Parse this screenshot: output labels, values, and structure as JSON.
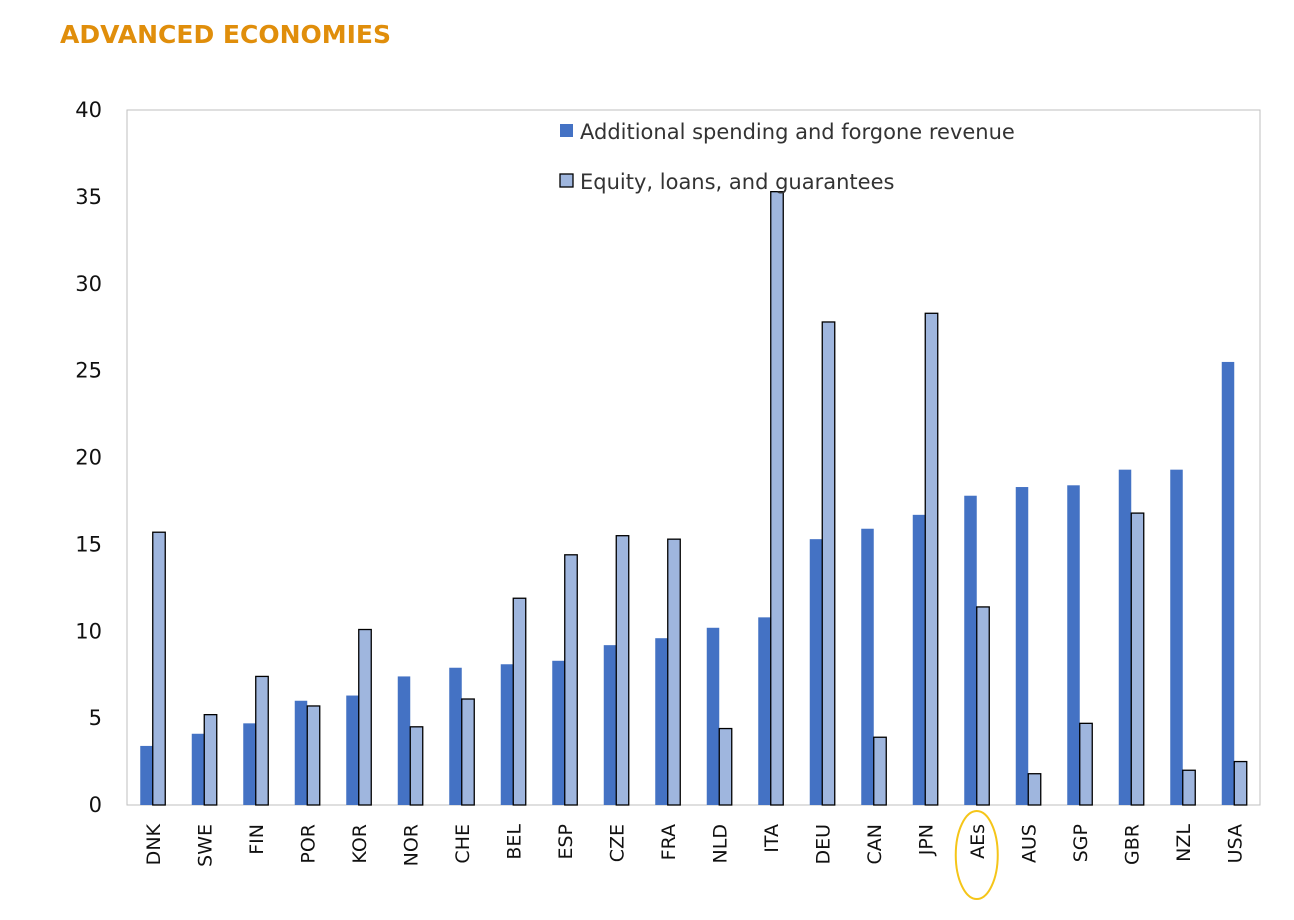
{
  "chart_data": {
    "type": "bar",
    "title": "ADVANCED ECONOMIES",
    "xlabel": "",
    "ylabel": "",
    "ylim": [
      0,
      40
    ],
    "yticks": [
      0,
      5,
      10,
      15,
      20,
      25,
      30,
      35,
      40
    ],
    "grid": false,
    "legend_position": "top-right",
    "highlighted_category": "AEs",
    "highlight_color": "#f5c518",
    "categories": [
      "DNK",
      "SWE",
      "FIN",
      "POR",
      "KOR",
      "NOR",
      "CHE",
      "BEL",
      "ESP",
      "CZE",
      "FRA",
      "NLD",
      "ITA",
      "DEU",
      "CAN",
      "JPN",
      "AEs",
      "AUS",
      "SGP",
      "GBR",
      "NZL",
      "USA"
    ],
    "series": [
      {
        "name": "Additional spending and forgone revenue",
        "color": "#4472c4",
        "values": [
          3.4,
          4.1,
          4.7,
          6.0,
          6.3,
          7.4,
          7.9,
          8.1,
          8.3,
          9.2,
          9.6,
          10.2,
          10.8,
          15.3,
          15.9,
          16.7,
          17.8,
          18.3,
          18.4,
          19.3,
          19.3,
          25.5
        ]
      },
      {
        "name": "Equity, loans, and guarantees",
        "color": "#9fb6de",
        "values": [
          15.7,
          5.2,
          7.4,
          5.7,
          10.1,
          4.5,
          6.1,
          11.9,
          14.4,
          15.5,
          15.3,
          4.4,
          35.3,
          27.8,
          3.9,
          28.3,
          11.4,
          1.8,
          4.7,
          16.8,
          2.0,
          2.5
        ]
      }
    ]
  }
}
